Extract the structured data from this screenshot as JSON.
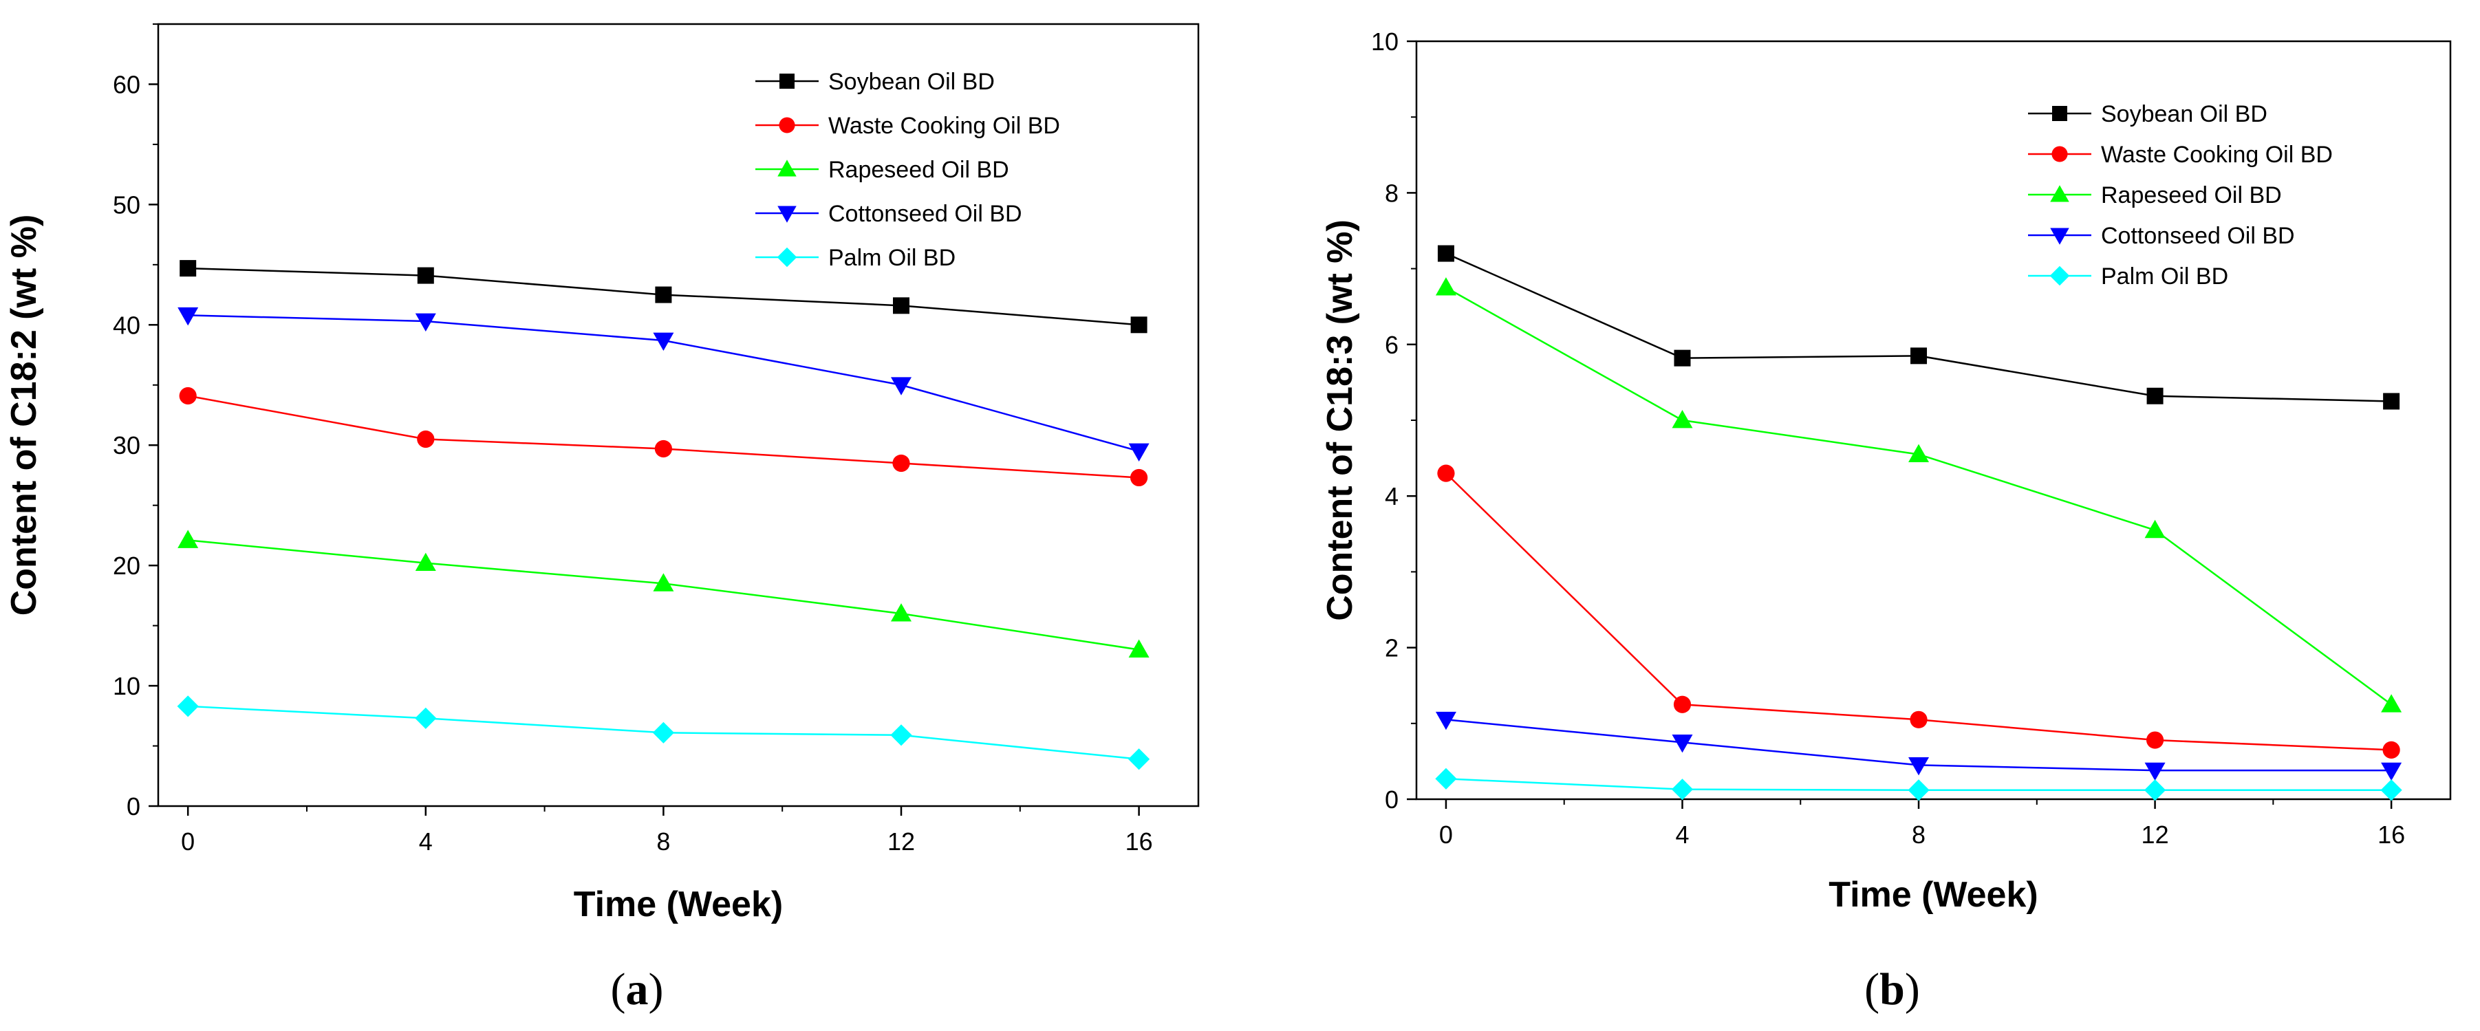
{
  "chart_data": [
    {
      "type": "line",
      "panel_label": "a",
      "title": "",
      "xlabel": "Time (Week)",
      "ylabel": "Content of C18:2 (wt %)",
      "x": [
        0,
        4,
        8,
        12,
        16
      ],
      "xticks": [
        0,
        4,
        8,
        12,
        16
      ],
      "xlim": [
        -0.5,
        17
      ],
      "yticks": [
        0,
        10,
        20,
        30,
        40,
        50,
        60
      ],
      "ylim": [
        0,
        65
      ],
      "legend_position": "top-right",
      "series": [
        {
          "name": "Soybean Oil BD",
          "color": "#000000",
          "marker": "square",
          "values": [
            44.7,
            44.1,
            42.5,
            41.6,
            40.0
          ]
        },
        {
          "name": "Waste Cooking Oil BD",
          "color": "#ff0000",
          "marker": "circle",
          "values": [
            34.1,
            30.5,
            29.7,
            28.5,
            27.3
          ]
        },
        {
          "name": "Rapeseed Oil BD",
          "color": "#00ff00",
          "marker": "triangle-up",
          "values": [
            22.1,
            20.2,
            18.5,
            16.0,
            13.0
          ]
        },
        {
          "name": "Cottonseed Oil BD",
          "color": "#0000ff",
          "marker": "triangle-down",
          "values": [
            40.8,
            40.3,
            38.7,
            35.0,
            29.5
          ]
        },
        {
          "name": "Palm Oil BD",
          "color": "#00ffff",
          "marker": "diamond",
          "values": [
            8.3,
            7.3,
            6.1,
            5.9,
            3.9
          ]
        }
      ]
    },
    {
      "type": "line",
      "panel_label": "b",
      "title": "",
      "xlabel": "Time (Week)",
      "ylabel": "Content of C18:3 (wt %)",
      "x": [
        0,
        4,
        8,
        12,
        16
      ],
      "xticks": [
        0,
        4,
        8,
        12,
        16
      ],
      "xlim": [
        -0.5,
        17
      ],
      "yticks": [
        0,
        2,
        4,
        6,
        8,
        10
      ],
      "ylim": [
        0,
        10
      ],
      "legend_position": "top-right",
      "series": [
        {
          "name": "Soybean Oil BD",
          "color": "#000000",
          "marker": "square",
          "values": [
            7.2,
            5.82,
            5.85,
            5.32,
            5.25
          ]
        },
        {
          "name": "Waste Cooking Oil BD",
          "color": "#ff0000",
          "marker": "circle",
          "values": [
            4.3,
            1.25,
            1.05,
            0.78,
            0.65
          ]
        },
        {
          "name": "Rapeseed Oil BD",
          "color": "#00ff00",
          "marker": "triangle-up",
          "values": [
            6.75,
            5.0,
            4.55,
            3.55,
            1.25
          ]
        },
        {
          "name": "Cottonseed Oil BD",
          "color": "#0000ff",
          "marker": "triangle-down",
          "values": [
            1.05,
            0.75,
            0.45,
            0.38,
            0.38
          ]
        },
        {
          "name": "Palm Oil BD",
          "color": "#00ffff",
          "marker": "diamond",
          "values": [
            0.27,
            0.13,
            0.12,
            0.12,
            0.12
          ]
        }
      ]
    }
  ]
}
